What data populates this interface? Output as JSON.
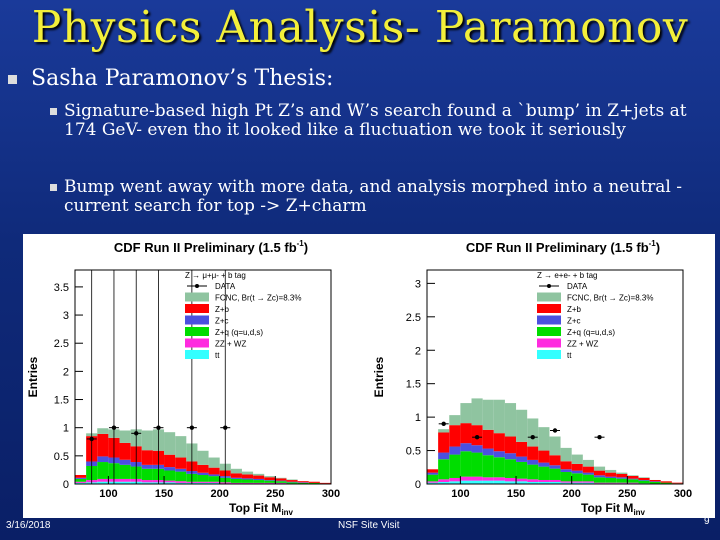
{
  "slide": {
    "title": "Physics Analysis- Paramonov",
    "bullet_main": "Sasha Paramonov’s Thesis:",
    "sub_bullets": [
      "Signature-based  high Pt Z’s and W’s search found a `bump’ in Z+jets at 174 GeV- even tho it looked like a fluctuation we took it seriously",
      "Bump went away with more data, and analysis morphed into a neutral -current search for top -> Z+charm"
    ],
    "footer": {
      "date": "3/16/2018",
      "center": "NSF Site Visit",
      "page": "9"
    }
  },
  "colors": {
    "title": "#f3ef3a",
    "fcnc": "#8fc4a0",
    "zb": "#ff0000",
    "zc": "#4b50e0",
    "zq": "#00dd00",
    "zzwz": "#ff2bdf",
    "tt": "#33ffff"
  },
  "chart_data": [
    {
      "type": "bar",
      "title": "CDF Run II Preliminary (1.5 fb",
      "title_sup": "-1",
      "title_end": ")",
      "xlabel": "Top Fit M",
      "xlabel_sub": "inv",
      "ylabel": "Entries",
      "xlim": [
        70,
        300
      ],
      "ylim": [
        0,
        3.8
      ],
      "xticks": [
        "100",
        "150",
        "200",
        "250",
        "300"
      ],
      "yticks": [
        "0",
        "0.5",
        "1",
        "1.5",
        "2",
        "2.5",
        "3",
        "3.5"
      ],
      "legend": {
        "title": "Z → μ+μ- + b tag",
        "entries": [
          "DATA",
          "FCNC, Br(t → Zc)=8.3%",
          "Z+b",
          "Z+c",
          "Z+q (q=u,d,s)",
          "ZZ + WZ",
          "tt"
        ]
      },
      "bins": [
        70,
        80,
        90,
        100,
        110,
        120,
        130,
        140,
        150,
        160,
        170,
        180,
        190,
        200,
        210,
        220,
        230,
        240,
        250,
        260,
        270,
        280,
        290,
        300
      ],
      "stack": [
        {
          "name": "tt",
          "values": [
            0.02,
            0.03,
            0.04,
            0.04,
            0.04,
            0.04,
            0.03,
            0.03,
            0.03,
            0.02,
            0.02,
            0.02,
            0.02,
            0.01,
            0.01,
            0.01,
            0.01,
            0.01,
            0.01,
            0.01,
            0.0,
            0.0,
            0.0
          ]
        },
        {
          "name": "ZZ + WZ",
          "values": [
            0.02,
            0.04,
            0.05,
            0.05,
            0.05,
            0.05,
            0.04,
            0.04,
            0.03,
            0.03,
            0.02,
            0.02,
            0.02,
            0.02,
            0.01,
            0.01,
            0.01,
            0.01,
            0.01,
            0.0,
            0.0,
            0.0,
            0.0
          ]
        },
        {
          "name": "Z+q (q=u,d,s)",
          "values": [
            0.05,
            0.25,
            0.3,
            0.28,
            0.25,
            0.22,
            0.2,
            0.2,
            0.18,
            0.17,
            0.14,
            0.12,
            0.1,
            0.08,
            0.07,
            0.06,
            0.05,
            0.04,
            0.03,
            0.02,
            0.02,
            0.02,
            0.01
          ]
        },
        {
          "name": "Z+c",
          "values": [
            0.02,
            0.08,
            0.1,
            0.1,
            0.09,
            0.08,
            0.07,
            0.07,
            0.06,
            0.05,
            0.05,
            0.04,
            0.03,
            0.03,
            0.02,
            0.02,
            0.02,
            0.01,
            0.01,
            0.01,
            0.01,
            0.0,
            0.0
          ]
        },
        {
          "name": "Z+b",
          "values": [
            0.05,
            0.45,
            0.4,
            0.35,
            0.3,
            0.28,
            0.26,
            0.25,
            0.22,
            0.2,
            0.17,
            0.14,
            0.12,
            0.1,
            0.08,
            0.07,
            0.06,
            0.05,
            0.04,
            0.03,
            0.02,
            0.02,
            0.01
          ]
        },
        {
          "name": "FCNC, Br(t → Zc)=8.3%",
          "values": [
            0.0,
            0.05,
            0.1,
            0.15,
            0.22,
            0.3,
            0.35,
            0.38,
            0.4,
            0.38,
            0.32,
            0.25,
            0.18,
            0.12,
            0.08,
            0.05,
            0.03,
            0.02,
            0.01,
            0.01,
            0.0,
            0.0,
            0.0
          ]
        }
      ],
      "data_points": [
        {
          "x": 85,
          "y": 0.8,
          "err": 3.0
        },
        {
          "x": 105,
          "y": 1.0,
          "err": 3.2
        },
        {
          "x": 125,
          "y": 0.9,
          "err": 3.0
        },
        {
          "x": 145,
          "y": 1.0,
          "err": 3.1
        },
        {
          "x": 175,
          "y": 1.0,
          "err": 3.0
        },
        {
          "x": 205,
          "y": 1.0,
          "err": 3.0
        }
      ]
    },
    {
      "type": "bar",
      "title": "CDF Run II Preliminary (1.5 fb",
      "title_sup": "-1",
      "title_end": ")",
      "xlabel": "Top Fit M",
      "xlabel_sub": "inv",
      "ylabel": "Entries",
      "xlim": [
        70,
        300
      ],
      "ylim": [
        0,
        3.2
      ],
      "xticks": [
        "100",
        "150",
        "200",
        "250",
        "300"
      ],
      "yticks": [
        "0",
        "0.5",
        "1",
        "1.5",
        "2",
        "2.5",
        "3"
      ],
      "legend": {
        "title": "Z → e+e- + b tag",
        "entries": [
          "DATA",
          "FCNC, Br(t → Zc)=8.3%",
          "Z+b",
          "Z+c",
          "Z+q (q=u,d,s)",
          "ZZ + WZ",
          "tt"
        ]
      },
      "bins": [
        70,
        80,
        90,
        100,
        110,
        120,
        130,
        140,
        150,
        160,
        170,
        180,
        190,
        200,
        210,
        220,
        230,
        240,
        250,
        260,
        270,
        280,
        290,
        300
      ],
      "stack": [
        {
          "name": "tt",
          "values": [
            0.02,
            0.03,
            0.04,
            0.05,
            0.05,
            0.05,
            0.05,
            0.04,
            0.04,
            0.03,
            0.03,
            0.03,
            0.02,
            0.02,
            0.02,
            0.01,
            0.01,
            0.01,
            0.01,
            0.01,
            0.0,
            0.0,
            0.0
          ]
        },
        {
          "name": "ZZ + WZ",
          "values": [
            0.02,
            0.04,
            0.05,
            0.06,
            0.06,
            0.05,
            0.05,
            0.05,
            0.04,
            0.04,
            0.03,
            0.03,
            0.02,
            0.02,
            0.02,
            0.01,
            0.01,
            0.01,
            0.01,
            0.0,
            0.0,
            0.0,
            0.0
          ]
        },
        {
          "name": "Z+q (q=u,d,s)",
          "values": [
            0.1,
            0.3,
            0.35,
            0.38,
            0.36,
            0.33,
            0.3,
            0.28,
            0.25,
            0.22,
            0.2,
            0.17,
            0.14,
            0.12,
            0.1,
            0.08,
            0.07,
            0.06,
            0.05,
            0.04,
            0.03,
            0.02,
            0.01
          ]
        },
        {
          "name": "Z+c",
          "values": [
            0.03,
            0.1,
            0.12,
            0.12,
            0.11,
            0.1,
            0.09,
            0.09,
            0.08,
            0.07,
            0.06,
            0.05,
            0.04,
            0.04,
            0.03,
            0.03,
            0.02,
            0.02,
            0.01,
            0.01,
            0.01,
            0.0,
            0.0
          ]
        },
        {
          "name": "Z+b",
          "values": [
            0.05,
            0.3,
            0.32,
            0.3,
            0.3,
            0.28,
            0.27,
            0.25,
            0.22,
            0.2,
            0.18,
            0.15,
            0.12,
            0.1,
            0.09,
            0.07,
            0.06,
            0.05,
            0.04,
            0.03,
            0.02,
            0.02,
            0.01
          ]
        },
        {
          "name": "FCNC, Br(t → Zc)=8.3%",
          "values": [
            0.0,
            0.05,
            0.15,
            0.3,
            0.4,
            0.45,
            0.5,
            0.5,
            0.48,
            0.42,
            0.35,
            0.28,
            0.2,
            0.14,
            0.1,
            0.06,
            0.04,
            0.02,
            0.01,
            0.01,
            0.0,
            0.0,
            0.0
          ]
        }
      ],
      "data_points": [
        {
          "x": 85,
          "y": 0.9,
          "err": 0.0
        },
        {
          "x": 115,
          "y": 0.7,
          "err": 0.0
        },
        {
          "x": 165,
          "y": 0.7,
          "err": 0.0
        },
        {
          "x": 185,
          "y": 0.8,
          "err": 0.0
        },
        {
          "x": 225,
          "y": 0.7,
          "err": 0.0
        }
      ]
    }
  ]
}
